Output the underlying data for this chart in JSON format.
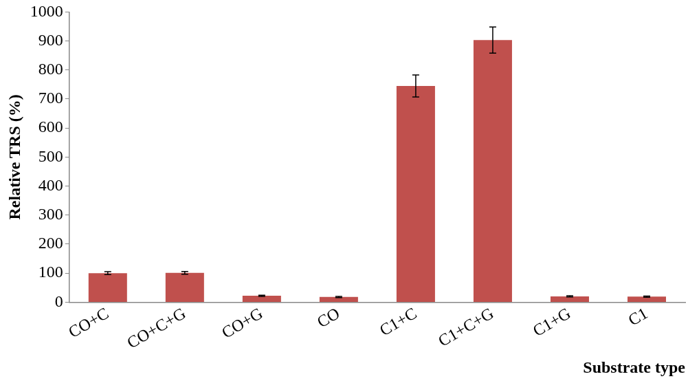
{
  "chart_data": {
    "type": "bar",
    "xlabel": "Substrate type",
    "ylabel": "Relative TRS (%)",
    "categories": [
      "CO+C",
      "CO+C+G",
      "CO+G",
      "CO",
      "C1+C",
      "C1+C+G",
      "C1+G",
      "C1"
    ],
    "values": [
      100,
      101,
      22,
      18,
      745,
      903,
      20,
      19
    ],
    "errors": [
      5,
      5,
      2,
      2,
      38,
      45,
      2,
      2
    ],
    "color": "#c0504d",
    "ylim": [
      0,
      1000
    ],
    "yticks": [
      0,
      100,
      200,
      300,
      400,
      500,
      600,
      700,
      800,
      900,
      1000
    ],
    "grid": false
  }
}
